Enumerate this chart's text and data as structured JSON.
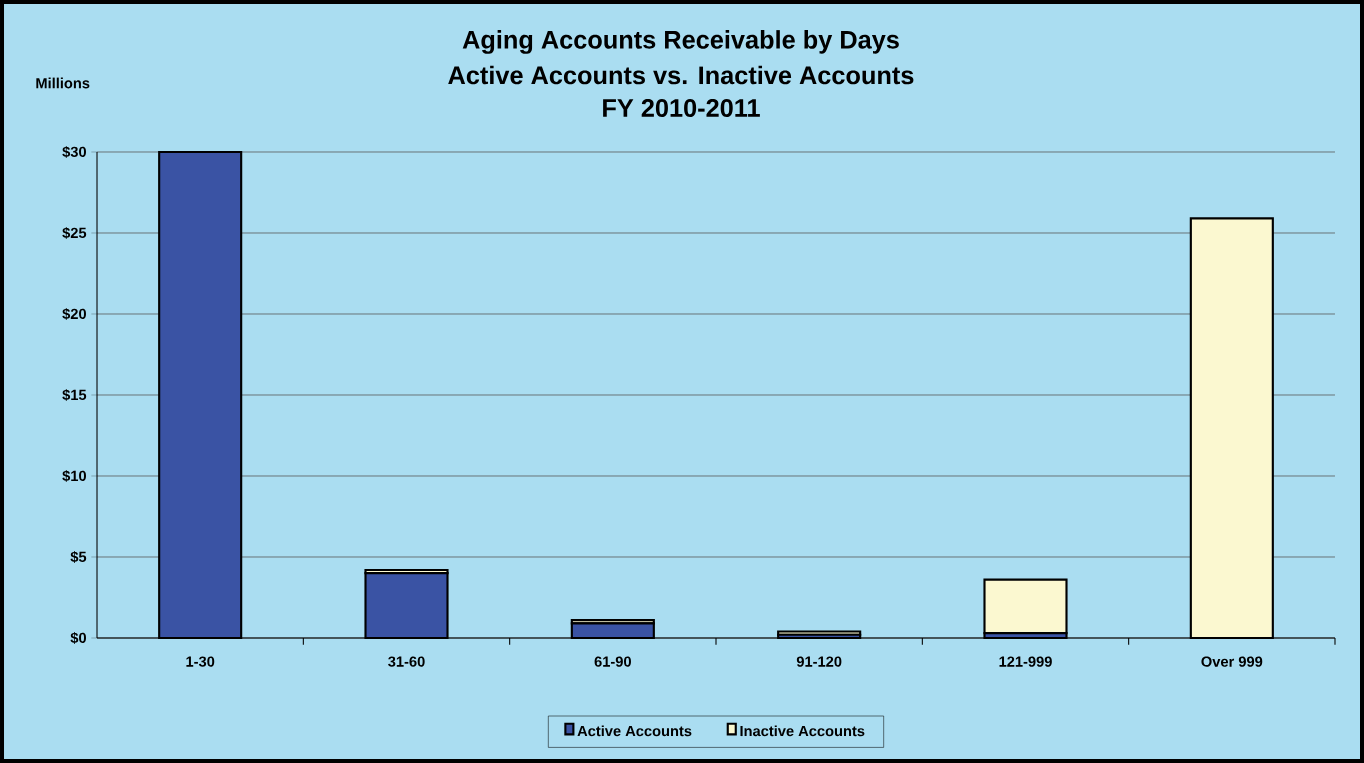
{
  "chart_data": {
    "type": "bar",
    "title": "Aging Accounts Receivable by  Days",
    "subtitle": "Active Accounts vs. Inactive Accounts",
    "ylabel": "Millions",
    "annotations": [
      "FY 2010-2011"
    ],
    "categories": [
      "1-30",
      "31-60",
      "61-90",
      "91-120",
      "121-999",
      "Over 999"
    ],
    "stacked": true,
    "series": [
      {
        "name": "Active Accounts",
        "color": "#3a53a4",
        "values": [
          30,
          4.0,
          0.9,
          0.2,
          0.3,
          0
        ]
      },
      {
        "name": "Inactive Accounts",
        "color": "#fbf8d0",
        "values": [
          0,
          0.2,
          0.2,
          0.2,
          3.3,
          25.9
        ]
      }
    ],
    "ylim": [
      0,
      30
    ],
    "yticks": [
      {
        "value": 0,
        "label": "$0"
      },
      {
        "value": 5,
        "label": "$5"
      },
      {
        "value": 10,
        "label": "$10"
      },
      {
        "value": 15,
        "label": "$15"
      },
      {
        "value": 20,
        "label": "$20"
      },
      {
        "value": 25,
        "label": "$25"
      },
      {
        "value": 30,
        "label": "$30"
      }
    ],
    "grid": "y",
    "legend": "bottom"
  }
}
